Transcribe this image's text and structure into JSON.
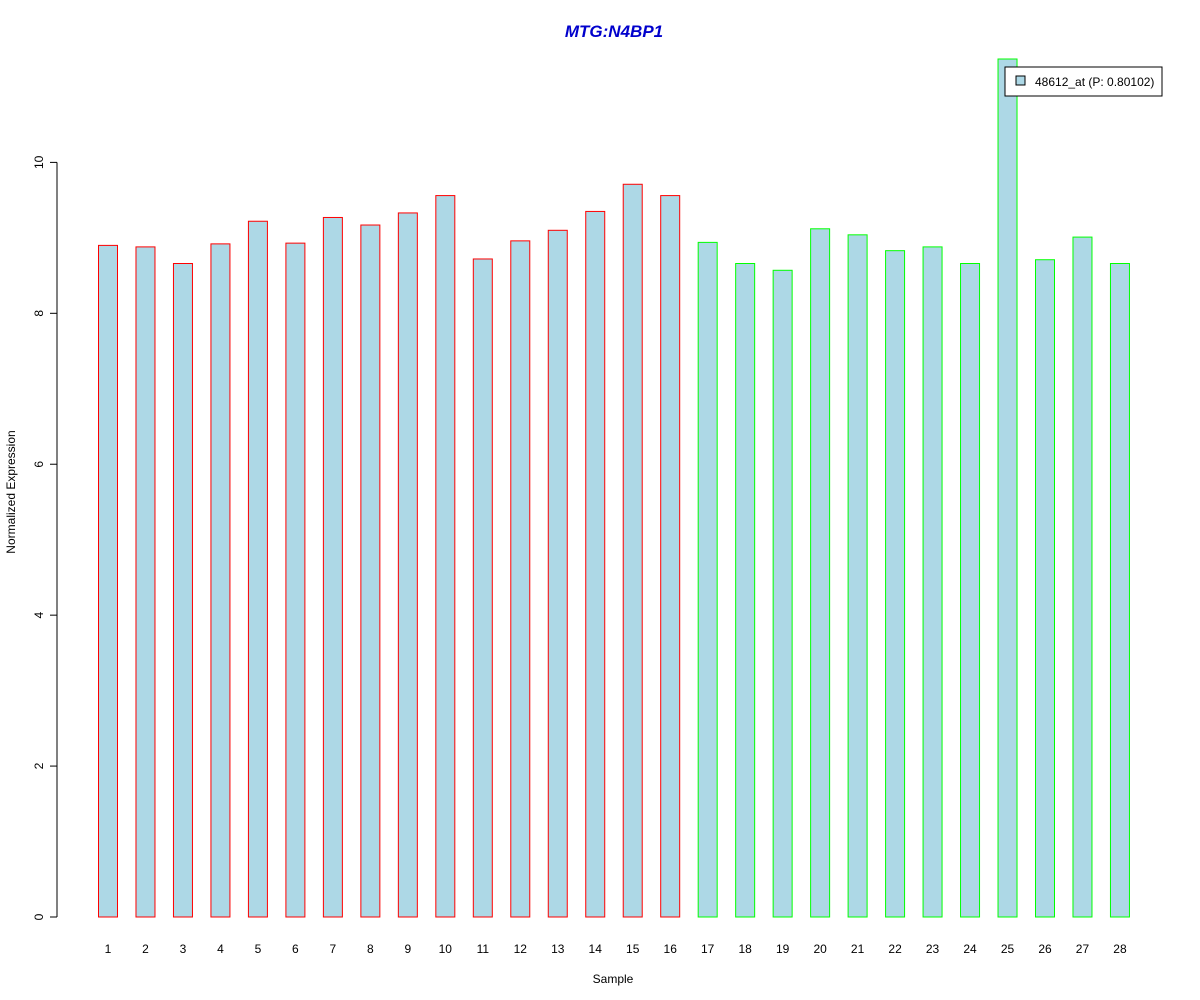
{
  "chart_data": {
    "type": "bar",
    "title": "MTG:N4BP1",
    "xlabel": "Sample",
    "ylabel": "Normalized Expression",
    "categories": [
      "1",
      "2",
      "3",
      "4",
      "5",
      "6",
      "7",
      "8",
      "9",
      "10",
      "11",
      "12",
      "13",
      "14",
      "15",
      "16",
      "17",
      "18",
      "19",
      "20",
      "21",
      "22",
      "23",
      "24",
      "25",
      "26",
      "27",
      "28"
    ],
    "values": [
      8.9,
      8.88,
      8.66,
      8.92,
      9.22,
      8.93,
      9.27,
      9.17,
      9.33,
      9.56,
      8.72,
      8.96,
      9.1,
      9.35,
      9.71,
      9.56,
      8.94,
      8.66,
      8.57,
      9.12,
      9.04,
      8.83,
      8.88,
      8.66,
      11.37,
      8.71,
      9.01,
      8.66
    ],
    "ylim": [
      0,
      11.37
    ],
    "yticks": [
      0,
      2,
      4,
      6,
      8,
      10
    ],
    "grid": false,
    "legend": {
      "position": "top-right",
      "entries": [
        {
          "label": "48612_at (P: 0.80102)",
          "color": "#add8e6"
        }
      ]
    },
    "colors": {
      "title": "#0000cc",
      "bar_fill": "#add8e6",
      "group_1_border": "#ff0000",
      "group_2_border": "#00ff00"
    },
    "groups": [
      {
        "samples": [
          "1",
          "2",
          "3",
          "4",
          "5",
          "6",
          "7",
          "8",
          "9",
          "10",
          "11",
          "12",
          "13",
          "14",
          "15",
          "16"
        ],
        "border_color": "#ff0000"
      },
      {
        "samples": [
          "17",
          "18",
          "19",
          "20",
          "21",
          "22",
          "23",
          "24",
          "25",
          "26",
          "27",
          "28"
        ],
        "border_color": "#00ff00"
      }
    ]
  }
}
